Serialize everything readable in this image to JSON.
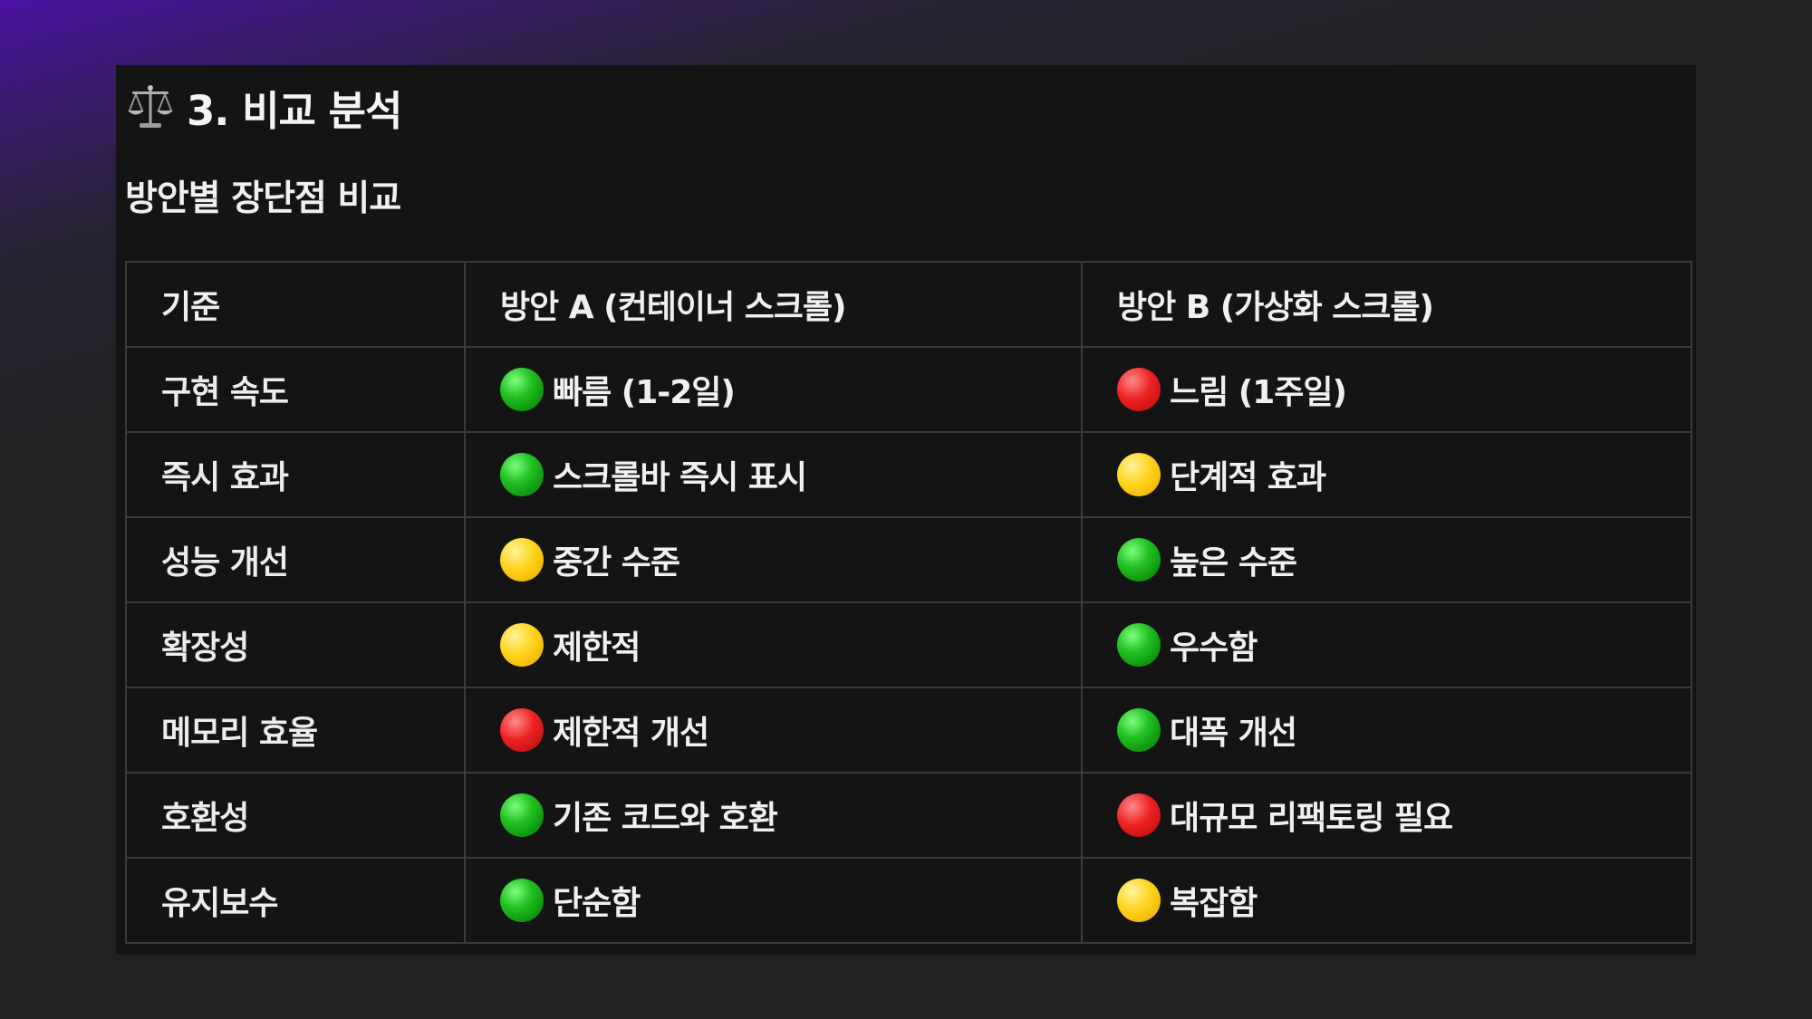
{
  "section": {
    "icon": "balance-scale-icon",
    "title": "3. 비교 분석",
    "subtitle": "방안별 장단점 비교"
  },
  "table": {
    "headers": [
      "기준",
      "방안 A (컨테이너 스크롤)",
      "방안 B (가상화 스크롤)"
    ],
    "rows": [
      {
        "criterion": "구현 속도",
        "a": {
          "status": "green",
          "text": "빠름 (1-2일)"
        },
        "b": {
          "status": "red",
          "text": "느림 (1주일)"
        }
      },
      {
        "criterion": "즉시 효과",
        "a": {
          "status": "green",
          "text": "스크롤바 즉시 표시"
        },
        "b": {
          "status": "yellow",
          "text": "단계적 효과"
        }
      },
      {
        "criterion": "성능 개선",
        "a": {
          "status": "yellow",
          "text": "중간 수준"
        },
        "b": {
          "status": "green",
          "text": "높은 수준"
        }
      },
      {
        "criterion": "확장성",
        "a": {
          "status": "yellow",
          "text": "제한적"
        },
        "b": {
          "status": "green",
          "text": "우수함"
        }
      },
      {
        "criterion": "메모리 효율",
        "a": {
          "status": "red",
          "text": "제한적 개선"
        },
        "b": {
          "status": "green",
          "text": "대폭 개선"
        }
      },
      {
        "criterion": "호환성",
        "a": {
          "status": "green",
          "text": "기존 코드와 호환"
        },
        "b": {
          "status": "red",
          "text": "대규모 리팩토링 필요"
        }
      },
      {
        "criterion": "유지보수",
        "a": {
          "status": "green",
          "text": "단순함"
        },
        "b": {
          "status": "yellow",
          "text": "복잡함"
        }
      }
    ]
  },
  "colors": {
    "green": "#1fb81f",
    "yellow": "#ffcc00",
    "red": "#e01b1b",
    "panel_background": "#141414",
    "border": "#3b3b3d"
  }
}
